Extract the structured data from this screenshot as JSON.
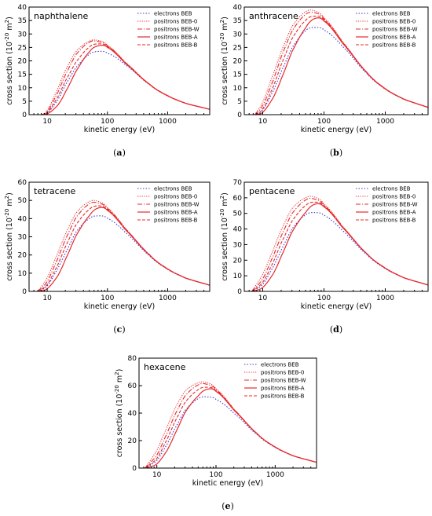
{
  "chart_data": [
    {
      "type": "line",
      "title": "naphthalene",
      "panel_label": "(a)",
      "xlabel": "kinetic energy (eV)",
      "ylabel": "cross section (10^-20 m^2)",
      "xscale": "log",
      "xlim": [
        5,
        5000
      ],
      "ylim": [
        0,
        40
      ],
      "yticks": [
        0,
        5,
        10,
        15,
        20,
        25,
        30,
        35,
        40
      ],
      "xticks": [
        10,
        100,
        1000
      ],
      "xtick_labels": [
        "10",
        "100",
        "1000"
      ],
      "legend_position": "top-right",
      "series": [
        {
          "name": "electrons BEB",
          "x": [
            8.1,
            10,
            15,
            20,
            30,
            50,
            70,
            100,
            200,
            500,
            1000,
            2000,
            5000
          ],
          "values": [
            0,
            0.6,
            5.5,
            11.0,
            17.5,
            22.4,
            23.5,
            22.9,
            18.5,
            11.2,
            7.0,
            4.2,
            2.0
          ]
        },
        {
          "name": "positrons BEB-0",
          "x": [
            8.1,
            10,
            15,
            20,
            30,
            50,
            70,
            100,
            200,
            500,
            1000,
            2000,
            5000
          ],
          "values": [
            0,
            1.8,
            9.6,
            16.5,
            23.5,
            27.3,
            27.6,
            25.8,
            19.4,
            11.4,
            7.1,
            4.2,
            2.0
          ]
        },
        {
          "name": "positrons BEB-W",
          "x": [
            8.1,
            10,
            15,
            20,
            30,
            50,
            70,
            100,
            200,
            500,
            1000,
            2000,
            5000
          ],
          "values": [
            0,
            1.2,
            8.2,
            14.8,
            22.3,
            26.9,
            27.2,
            25.6,
            19.3,
            11.4,
            7.1,
            4.2,
            2.0
          ]
        },
        {
          "name": "positrons BEB-A",
          "x": [
            8.1,
            10,
            15,
            20,
            30,
            50,
            70,
            100,
            200,
            500,
            1000,
            2000,
            5000
          ],
          "values": [
            0,
            0.3,
            3.5,
            8.4,
            16.1,
            23.3,
            25.6,
            25.0,
            19.0,
            11.3,
            7.0,
            4.2,
            2.0
          ]
        },
        {
          "name": "positrons BEB-B",
          "x": [
            8.1,
            10,
            15,
            20,
            30,
            50,
            70,
            100,
            200,
            500,
            1000,
            2000,
            5000
          ],
          "values": [
            0,
            0.8,
            6.5,
            12.5,
            19.5,
            25.1,
            26.3,
            25.3,
            19.1,
            11.3,
            7.0,
            4.2,
            2.0
          ]
        }
      ]
    },
    {
      "type": "line",
      "title": "anthracene",
      "panel_label": "(b)",
      "xlabel": "kinetic energy (eV)",
      "ylabel": "cross section (10^-20 m^2)",
      "xscale": "log",
      "xlim": [
        5,
        5000
      ],
      "ylim": [
        0,
        40
      ],
      "yticks": [
        0,
        5,
        10,
        15,
        20,
        25,
        30,
        35,
        40
      ],
      "xticks": [
        10,
        100,
        1000
      ],
      "xtick_labels": [
        "10",
        "100",
        "1000"
      ],
      "legend_position": "top-right",
      "series": [
        {
          "name": "electrons BEB",
          "x": [
            7.4,
            10,
            15,
            20,
            30,
            50,
            70,
            100,
            200,
            500,
            1000,
            2000,
            5000
          ],
          "values": [
            0,
            1.8,
            9.0,
            16.0,
            24.8,
            31.2,
            32.4,
            31.5,
            25.4,
            15.3,
            9.5,
            5.7,
            2.7
          ]
        },
        {
          "name": "positrons BEB-0",
          "x": [
            7.4,
            10,
            15,
            20,
            30,
            50,
            70,
            100,
            200,
            500,
            1000,
            2000,
            5000
          ],
          "values": [
            0,
            4.8,
            15.2,
            23.5,
            32.7,
            38.2,
            38.6,
            36.0,
            27.2,
            15.8,
            9.7,
            5.8,
            2.7
          ]
        },
        {
          "name": "positrons BEB-W",
          "x": [
            7.4,
            10,
            15,
            20,
            30,
            50,
            70,
            100,
            200,
            500,
            1000,
            2000,
            5000
          ],
          "values": [
            0,
            3.5,
            13.0,
            21.5,
            31.0,
            37.2,
            37.9,
            35.6,
            27.0,
            15.8,
            9.7,
            5.8,
            2.7
          ]
        },
        {
          "name": "positrons BEB-A",
          "x": [
            7.4,
            10,
            15,
            20,
            30,
            50,
            70,
            100,
            200,
            500,
            1000,
            2000,
            5000
          ],
          "values": [
            0,
            0.9,
            6.5,
            13.3,
            23.4,
            32.2,
            35.7,
            34.8,
            26.6,
            15.7,
            9.6,
            5.8,
            2.7
          ]
        },
        {
          "name": "positrons BEB-B",
          "x": [
            7.4,
            10,
            15,
            20,
            30,
            50,
            70,
            100,
            200,
            500,
            1000,
            2000,
            5000
          ],
          "values": [
            0,
            2.2,
            10.6,
            18.6,
            28.2,
            35.0,
            36.6,
            35.2,
            26.8,
            15.7,
            9.6,
            5.8,
            2.7
          ]
        }
      ]
    },
    {
      "type": "line",
      "title": "tetracene",
      "panel_label": "(c)",
      "xlabel": "kinetic energy (eV)",
      "ylabel": "cross section (10^-20 m^2)",
      "xscale": "log",
      "xlim": [
        5,
        5000
      ],
      "ylim": [
        0,
        60
      ],
      "yticks": [
        0,
        10,
        20,
        30,
        40,
        50,
        60
      ],
      "xticks": [
        10,
        100,
        1000
      ],
      "xtick_labels": [
        "10",
        "100",
        "1000"
      ],
      "legend_position": "top-right",
      "series": [
        {
          "name": "electrons BEB",
          "x": [
            7.0,
            10,
            15,
            20,
            30,
            50,
            70,
            100,
            200,
            500,
            1000,
            2000,
            5000
          ],
          "values": [
            0,
            3.0,
            12.5,
            21.0,
            32.5,
            40.0,
            41.5,
            40.2,
            32.3,
            19.6,
            12.1,
            7.2,
            3.4
          ]
        },
        {
          "name": "positrons BEB-0",
          "x": [
            7.0,
            10,
            15,
            20,
            30,
            50,
            70,
            100,
            200,
            500,
            1000,
            2000,
            5000
          ],
          "values": [
            0,
            7.5,
            21.0,
            31.5,
            43.0,
            49.3,
            49.5,
            46.0,
            34.5,
            20.2,
            12.4,
            7.3,
            3.4
          ]
        },
        {
          "name": "positrons BEB-W",
          "x": [
            7.0,
            10,
            15,
            20,
            30,
            50,
            70,
            100,
            200,
            500,
            1000,
            2000,
            5000
          ],
          "values": [
            0,
            5.5,
            18.0,
            28.5,
            40.5,
            48.0,
            48.6,
            45.5,
            34.3,
            20.2,
            12.4,
            7.3,
            3.4
          ]
        },
        {
          "name": "positrons BEB-A",
          "x": [
            7.0,
            10,
            15,
            20,
            30,
            50,
            70,
            100,
            200,
            500,
            1000,
            2000,
            5000
          ],
          "values": [
            0,
            1.5,
            8.5,
            17.5,
            30.5,
            41.5,
            45.8,
            44.5,
            33.8,
            20.0,
            12.3,
            7.3,
            3.4
          ]
        },
        {
          "name": "positrons BEB-B",
          "x": [
            7.0,
            10,
            15,
            20,
            30,
            50,
            70,
            100,
            200,
            500,
            1000,
            2000,
            5000
          ],
          "values": [
            0,
            3.8,
            14.5,
            24.5,
            36.5,
            45.0,
            47.0,
            45.0,
            34.0,
            20.1,
            12.3,
            7.3,
            3.4
          ]
        }
      ]
    },
    {
      "type": "line",
      "title": "pentacene",
      "panel_label": "(d)",
      "xlabel": "kinetic energy (eV)",
      "ylabel": "cross section (10^-20 m^2)",
      "xscale": "log",
      "xlim": [
        5,
        5000
      ],
      "ylim": [
        0,
        70
      ],
      "yticks": [
        0,
        10,
        20,
        30,
        40,
        50,
        60,
        70
      ],
      "xticks": [
        10,
        100,
        1000
      ],
      "xtick_labels": [
        "10",
        "100",
        "1000"
      ],
      "legend_position": "top-right",
      "series": [
        {
          "name": "electrons BEB",
          "x": [
            6.6,
            10,
            15,
            20,
            30,
            50,
            70,
            100,
            200,
            500,
            1000,
            2000,
            5000
          ],
          "values": [
            0,
            4.5,
            16.0,
            26.5,
            40.0,
            49.0,
            50.5,
            48.8,
            39.0,
            23.6,
            14.6,
            8.7,
            4.1
          ]
        },
        {
          "name": "positrons BEB-0",
          "x": [
            6.6,
            10,
            15,
            20,
            30,
            50,
            70,
            100,
            200,
            500,
            1000,
            2000,
            5000
          ],
          "values": [
            0,
            11.0,
            27.0,
            39.5,
            53.0,
            60.0,
            60.5,
            56.0,
            41.8,
            24.3,
            15.0,
            8.8,
            4.1
          ]
        },
        {
          "name": "positrons BEB-W",
          "x": [
            6.6,
            10,
            15,
            20,
            30,
            50,
            70,
            100,
            200,
            500,
            1000,
            2000,
            5000
          ],
          "values": [
            0,
            8.0,
            23.0,
            35.5,
            49.8,
            58.5,
            59.2,
            55.3,
            41.5,
            24.3,
            15.0,
            8.8,
            4.1
          ]
        },
        {
          "name": "positrons BEB-A",
          "x": [
            6.6,
            10,
            15,
            20,
            30,
            50,
            70,
            100,
            200,
            500,
            1000,
            2000,
            5000
          ],
          "values": [
            0,
            2.5,
            11.5,
            22.5,
            38.0,
            50.5,
            55.8,
            54.2,
            41.0,
            24.2,
            14.9,
            8.8,
            4.1
          ]
        },
        {
          "name": "positrons BEB-B",
          "x": [
            6.6,
            10,
            15,
            20,
            30,
            50,
            70,
            100,
            200,
            500,
            1000,
            2000,
            5000
          ],
          "values": [
            0,
            5.8,
            19.0,
            31.0,
            45.0,
            55.0,
            57.2,
            54.8,
            41.2,
            24.2,
            14.9,
            8.8,
            4.1
          ]
        }
      ]
    },
    {
      "type": "line",
      "title": "hexacene",
      "panel_label": "(e)",
      "xlabel": "kinetic energy (eV)",
      "ylabel": "cross section (10^-20 m^2)",
      "xscale": "log",
      "xlim": [
        5,
        5000
      ],
      "ylim": [
        0,
        80
      ],
      "yticks": [
        0,
        20,
        40,
        60,
        80
      ],
      "xticks": [
        10,
        100,
        1000
      ],
      "xtick_labels": [
        "10",
        "100",
        "1000"
      ],
      "legend_position": "top-right",
      "series": [
        {
          "name": "electrons BEB",
          "x": [
            6.3,
            10,
            15,
            20,
            30,
            50,
            70,
            100,
            200,
            500,
            1000,
            2000,
            5000
          ],
          "values": [
            0,
            5.5,
            17.5,
            28.5,
            42.0,
            50.5,
            51.8,
            50.0,
            40.0,
            24.2,
            15.0,
            8.9,
            4.2
          ]
        },
        {
          "name": "positrons BEB-0",
          "x": [
            6.3,
            10,
            15,
            20,
            30,
            50,
            70,
            100,
            200,
            500,
            1000,
            2000,
            5000
          ],
          "values": [
            0,
            13.0,
            30.0,
            43.0,
            56.0,
            62.0,
            62.2,
            57.8,
            43.0,
            25.0,
            15.4,
            9.0,
            4.2
          ]
        },
        {
          "name": "positrons BEB-W",
          "x": [
            6.3,
            10,
            15,
            20,
            30,
            50,
            70,
            100,
            200,
            500,
            1000,
            2000,
            5000
          ],
          "values": [
            0,
            9.5,
            25.5,
            38.5,
            52.5,
            60.5,
            61.0,
            57.0,
            42.8,
            25.0,
            15.4,
            9.0,
            4.2
          ]
        },
        {
          "name": "positrons BEB-A",
          "x": [
            6.3,
            10,
            15,
            20,
            30,
            50,
            70,
            100,
            200,
            500,
            1000,
            2000,
            5000
          ],
          "values": [
            0,
            3.0,
            13.0,
            24.5,
            40.5,
            52.5,
            57.3,
            55.8,
            42.2,
            24.9,
            15.3,
            9.0,
            4.2
          ]
        },
        {
          "name": "positrons BEB-B",
          "x": [
            6.3,
            10,
            15,
            20,
            30,
            50,
            70,
            100,
            200,
            500,
            1000,
            2000,
            5000
          ],
          "values": [
            0,
            7.0,
            21.0,
            33.5,
            47.8,
            57.0,
            58.8,
            56.3,
            42.5,
            24.9,
            15.3,
            9.0,
            4.2
          ]
        }
      ]
    }
  ],
  "legend": {
    "series_styles": [
      {
        "name": "electrons BEB",
        "color": "#3a3ad6",
        "dash": "1.5 2",
        "width": 1.1
      },
      {
        "name": "positrons BEB-0",
        "color": "#e8282a",
        "dash": "1.2 1.6",
        "width": 1.0
      },
      {
        "name": "positrons BEB-W",
        "color": "#e8282a",
        "dash": "6 2 1.2 2",
        "width": 1.1
      },
      {
        "name": "positrons BEB-A",
        "color": "#e8282a",
        "dash": "",
        "width": 1.2
      },
      {
        "name": "positrons BEB-B",
        "color": "#e8282a",
        "dash": "4 2",
        "width": 1.1
      }
    ]
  }
}
